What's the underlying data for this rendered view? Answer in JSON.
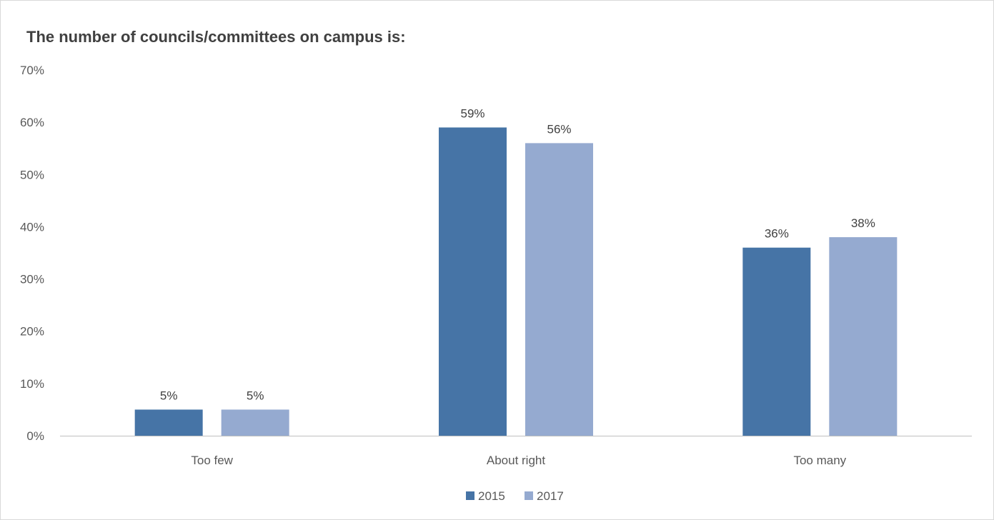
{
  "chart_data": {
    "type": "bar",
    "title": "The number of councils/committees on campus is:",
    "categories": [
      "Too few",
      "About right",
      "Too many"
    ],
    "series": [
      {
        "name": "2015",
        "values": [
          5,
          59,
          36
        ],
        "labels": [
          "5%",
          "59%",
          "36%"
        ],
        "color": "#4674a6"
      },
      {
        "name": "2017",
        "values": [
          5,
          56,
          38
        ],
        "labels": [
          "5%",
          "56%",
          "38%"
        ],
        "color": "#95aad0"
      }
    ],
    "ylim": [
      0,
      70
    ],
    "yticks": [
      0,
      10,
      20,
      30,
      40,
      50,
      60,
      70
    ],
    "ytick_labels": [
      "0%",
      "10%",
      "20%",
      "30%",
      "40%",
      "50%",
      "60%",
      "70%"
    ],
    "grid": false,
    "legend": "bottom-center",
    "axis_color": "#bfbfbf"
  }
}
